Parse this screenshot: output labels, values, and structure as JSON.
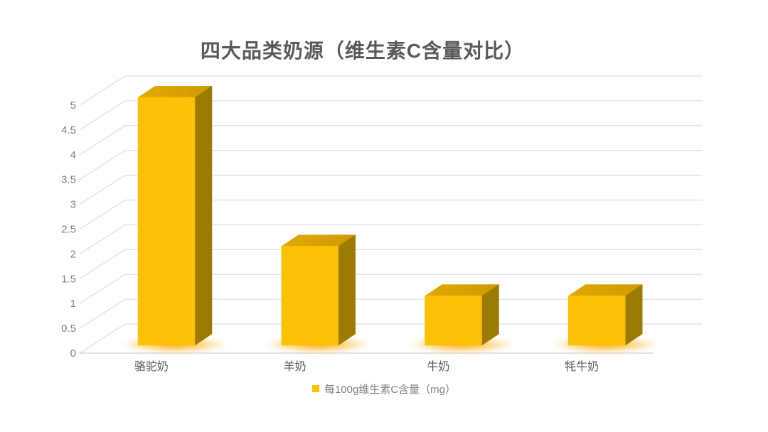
{
  "chart_data": {
    "type": "bar",
    "variant": "3d-column",
    "title": "四大品类奶源（维生素C含量对比）",
    "categories": [
      "骆驼奶",
      "羊奶",
      "牛奶",
      "牦牛奶"
    ],
    "series": [
      {
        "name": "每100g维生素C含量（mg）",
        "values": [
          5,
          2,
          1,
          1
        ]
      }
    ],
    "xlabel": "",
    "ylabel": "",
    "ylim": [
      0,
      5
    ],
    "ytick_step": 0.5,
    "yticks": [
      "0",
      "0.5",
      "1",
      "1.5",
      "2",
      "2.5",
      "3",
      "3.5",
      "4",
      "4.5",
      "5"
    ],
    "grid": true,
    "legend_position": "bottom",
    "colors": {
      "background": "#FFFFFF",
      "bar_front": "#FEC004",
      "bar_top_light": "#E2A902",
      "bar_top_dark": "#CE9A00",
      "bar_side": "#9C7B02",
      "glow": "#FFA800",
      "gridline": "#D6D6D6",
      "axis_line": "#C6C6C6",
      "tick_label": "#808080",
      "category_label": "#595959",
      "title": "#595959",
      "legend_text": "#7F7F7F",
      "legend_swatch": "#FFC000"
    }
  }
}
